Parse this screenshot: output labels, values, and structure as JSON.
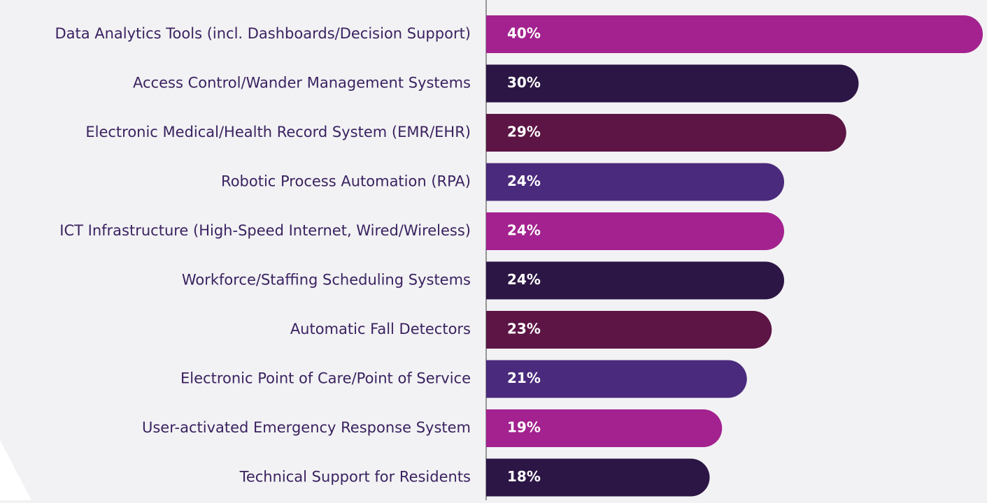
{
  "chart_data": {
    "type": "hbar",
    "categories": [
      "Data Analytics Tools (incl. Dashboards/Decision Support)",
      "Access Control/Wander Management Systems",
      "Electronic Medical/Health Record System (EMR/EHR)",
      "Robotic Process Automation (RPA)",
      "ICT Infrastructure (High-Speed Internet, Wired/Wireless)",
      "Workforce/Staffing Scheduling Systems",
      "Automatic Fall Detectors",
      "Electronic Point of Care/Point of Service",
      "User-activated Emergency Response System",
      "Technical Support for Residents"
    ],
    "values": [
      40,
      30,
      29,
      24,
      24,
      24,
      23,
      21,
      19,
      18
    ],
    "value_labels": [
      "40%",
      "30%",
      "29%",
      "24%",
      "24%",
      "24%",
      "23%",
      "21%",
      "19%",
      "18%"
    ],
    "colors": [
      "#a3228f",
      "#2c1645",
      "#5c1545",
      "#4a2a7c",
      "#a3228f",
      "#2c1645",
      "#5c1545",
      "#4a2a7c",
      "#a3228f",
      "#2c1645"
    ],
    "xlim": [
      0,
      40
    ]
  }
}
